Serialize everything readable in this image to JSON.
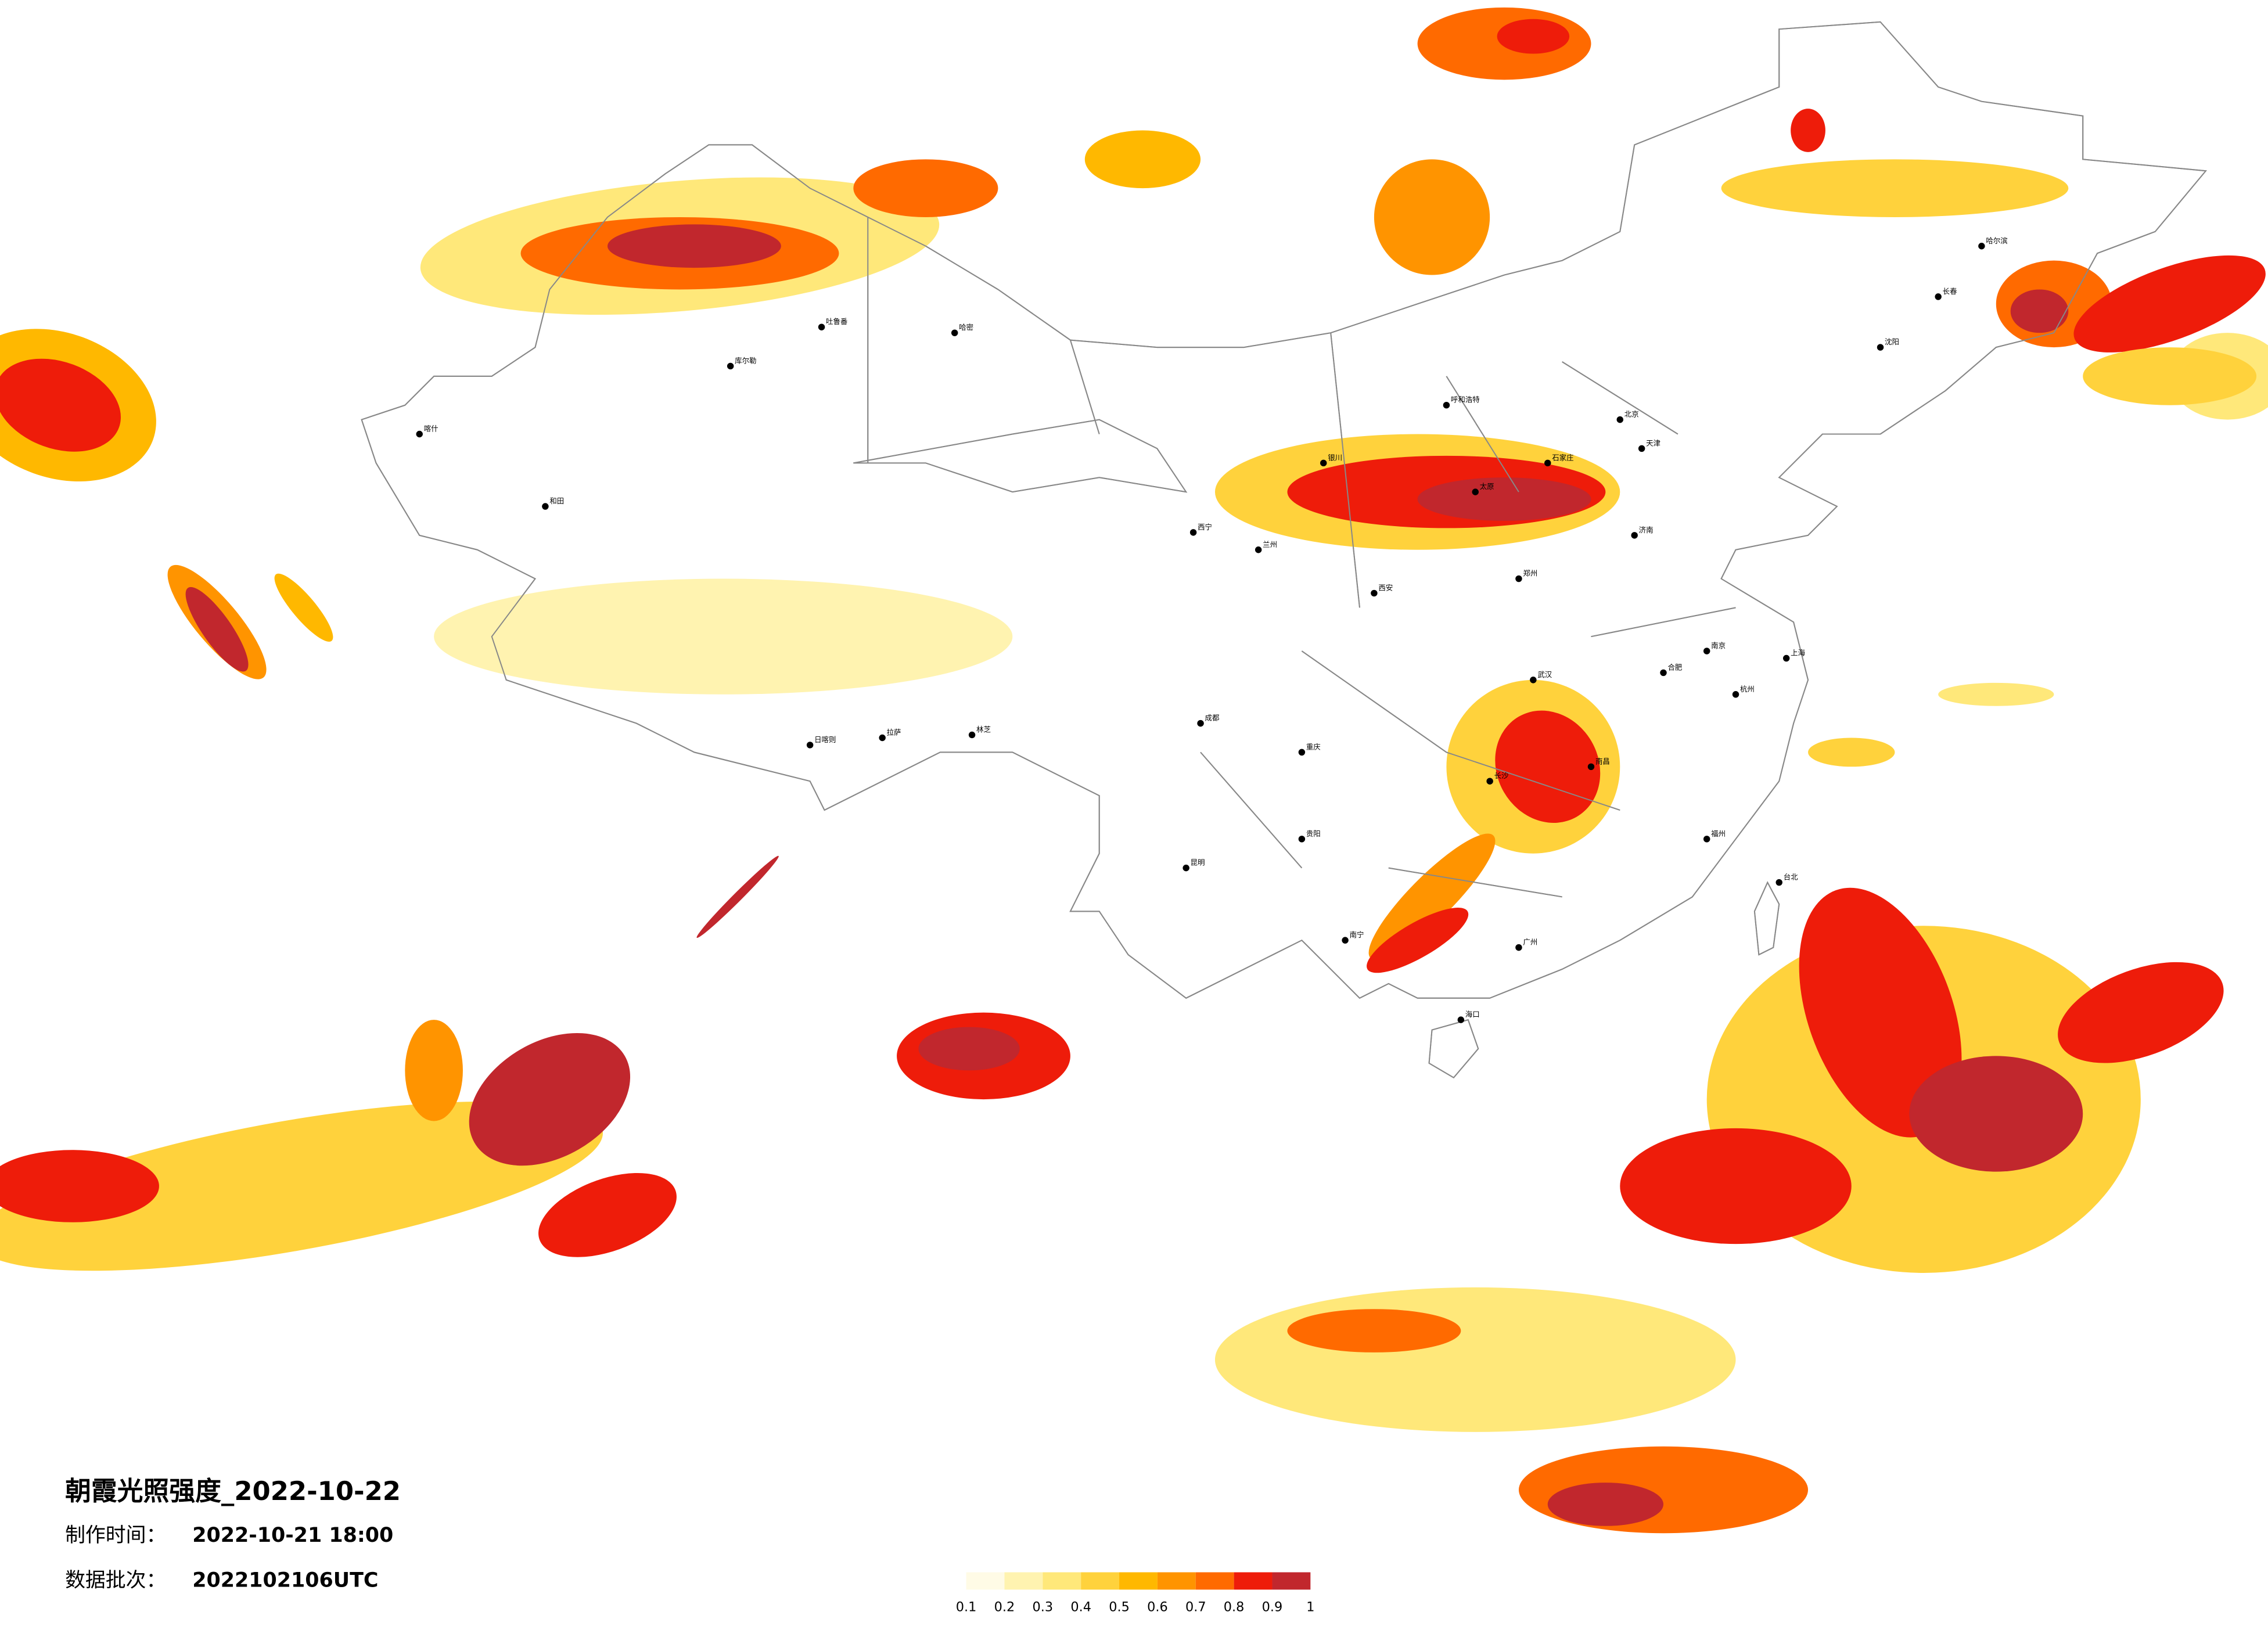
{
  "map": {
    "title": "朝霞光照强度_2022-10-22",
    "info": [
      {
        "label": "制作时间：",
        "value": "2022-10-21 18:00"
      },
      {
        "label": "数据批次：",
        "value": "2022102106UTC"
      }
    ],
    "legend": {
      "ticks": [
        0.1,
        0.2,
        0.3,
        0.4,
        0.5,
        0.6,
        0.7,
        0.8,
        0.9,
        1
      ],
      "colors": [
        "#fffbe6",
        "#fff3b0",
        "#ffe87a",
        "#ffd23c",
        "#ffb800",
        "#ff9400",
        "#ff6a00",
        "#ee1c0a",
        "#c1272d"
      ]
    },
    "cities": [
      "哈密",
      "库尔勒",
      "和田",
      "喀什",
      "吐鲁番",
      "拉萨",
      "日喀则",
      "林芝",
      "西宁",
      "兰州",
      "银川",
      "呼和浩特",
      "北京",
      "天津",
      "哈尔滨",
      "长春",
      "沈阳",
      "济南",
      "郑州",
      "西安",
      "成都",
      "重庆",
      "贵阳",
      "昆明",
      "南宁",
      "广州",
      "长沙",
      "武汉",
      "南昌",
      "杭州",
      "福州",
      "台北",
      "海口",
      "上海",
      "南京",
      "合肥",
      "石家庄",
      "太原"
    ]
  }
}
